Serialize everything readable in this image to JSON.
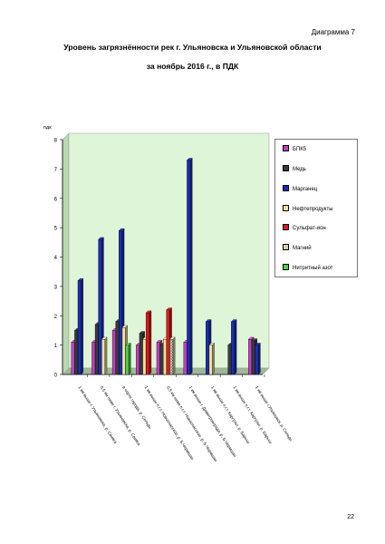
{
  "page": {
    "diagram_label": "Диаграмма 7",
    "title_line1": "Уровень загрязнённости рек г. Ульяновска и Ульяновской области",
    "title_line2": "за ноябрь 2016 г., в ПДК",
    "page_number": "22"
  },
  "chart_data": {
    "type": "bar",
    "ylabel": "пдк",
    "ylim": [
      0,
      8
    ],
    "yticks": [
      "0",
      "1",
      "2",
      "3",
      "4",
      "5",
      "6",
      "7",
      "8"
    ],
    "categories": [
      "1 км выше г. Ульяновска, р. Свияга",
      "0,5 км ниже г. Ульяновска, р. Свияга",
      "в черте города, р. Сельдь",
      "1 км выше п.г.т. Новоспасское, р. Б.Чермшан",
      "0,5 км ниже п.г.т. Новоспасское, р. Б.Чермшан",
      "1 км выше г. Димитровграда, р. Б.Чермшан",
      "1 км выше п.г.т. Каргульт, р. Барыш",
      "1 км выше п.г.т. Каргульт, р. Барыш",
      "1 км выше г.Ульяновск, р. Сельдь"
    ],
    "series": [
      {
        "name": "БПК5",
        "color": "#c040c0",
        "values": [
          1.1,
          1.1,
          1.5,
          1.0,
          1.1,
          1.1,
          null,
          null,
          1.2
        ]
      },
      {
        "name": "Медь",
        "color": "#3a3a3a",
        "values": [
          1.5,
          1.7,
          1.8,
          1.4,
          1.0,
          null,
          null,
          1.0,
          1.15
        ]
      },
      {
        "name": "Марганец",
        "color": "#1a2fb0",
        "values": [
          3.2,
          4.6,
          4.9,
          null,
          null,
          7.3,
          1.8,
          1.8,
          1.0
        ]
      },
      {
        "name": "Нефтепродукты",
        "color": "#f0e0a0",
        "values": [
          null,
          1.2,
          1.6,
          1.2,
          1.2,
          null,
          1.0,
          null,
          null
        ]
      },
      {
        "name": "Сульфат-ион",
        "color": "#e01818",
        "values": [
          null,
          null,
          null,
          2.1,
          2.2,
          null,
          null,
          null,
          null
        ]
      },
      {
        "name": "Магний",
        "color": "#d8d0b0",
        "values": [
          null,
          null,
          null,
          null,
          1.2,
          null,
          null,
          null,
          null
        ]
      },
      {
        "name": "Нитритный азот",
        "color": "#50d050",
        "values": [
          null,
          null,
          1.0,
          null,
          null,
          null,
          null,
          null,
          null
        ]
      }
    ],
    "legend": "right",
    "plot_background": "#dff5d8",
    "grid": false
  }
}
